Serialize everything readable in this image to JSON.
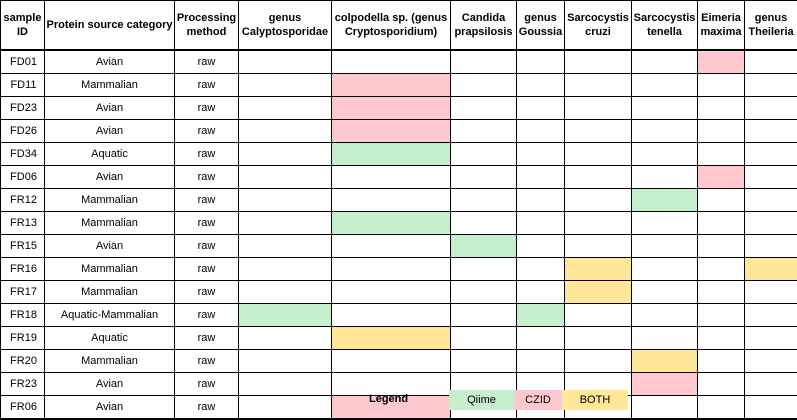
{
  "colors": {
    "qiime": "#c6efce",
    "czid": "#ffc7ce",
    "both": "#ffe699"
  },
  "headers": [
    "sample ID",
    "Protein source category",
    "Processing method",
    "genus Calyptosporidae",
    "colpodella sp. (genus Cryptosporidium)",
    "Candida prapsilosis",
    "genus Goussia",
    "Sarcocystis cruzi",
    "Sarcocystis tenella",
    "Eimeria maxima",
    "genus Theileria"
  ],
  "rows": [
    {
      "id": "FD01",
      "category": "Avian",
      "method": "raw",
      "marks": [
        null,
        null,
        null,
        null,
        null,
        null,
        "czid",
        null
      ]
    },
    {
      "id": "FD11",
      "category": "Mammalian",
      "method": "raw",
      "marks": [
        null,
        "czid",
        null,
        null,
        null,
        null,
        null,
        null
      ]
    },
    {
      "id": "FD23",
      "category": "Avian",
      "method": "raw",
      "marks": [
        null,
        "czid",
        null,
        null,
        null,
        null,
        null,
        null
      ]
    },
    {
      "id": "FD26",
      "category": "Avian",
      "method": "raw",
      "marks": [
        null,
        "czid",
        null,
        null,
        null,
        null,
        null,
        null
      ]
    },
    {
      "id": "FD34",
      "category": "Aquatic",
      "method": "raw",
      "marks": [
        null,
        "qiime",
        null,
        null,
        null,
        null,
        null,
        null
      ]
    },
    {
      "id": "FD06",
      "category": "Avian",
      "method": "raw",
      "marks": [
        null,
        null,
        null,
        null,
        null,
        null,
        "czid",
        null
      ]
    },
    {
      "id": "FR12",
      "category": "Mammalian",
      "method": "raw",
      "marks": [
        null,
        null,
        null,
        null,
        null,
        "qiime",
        null,
        null
      ]
    },
    {
      "id": "FR13",
      "category": "Mammalian",
      "method": "raw",
      "marks": [
        null,
        "qiime",
        null,
        null,
        null,
        null,
        null,
        null
      ]
    },
    {
      "id": "FR15",
      "category": "Avian",
      "method": "raw",
      "marks": [
        null,
        null,
        "qiime",
        null,
        null,
        null,
        null,
        null
      ]
    },
    {
      "id": "FR16",
      "category": "Mammalian",
      "method": "raw",
      "marks": [
        null,
        null,
        null,
        null,
        "both",
        null,
        null,
        "both"
      ]
    },
    {
      "id": "FR17",
      "category": "Mammalian",
      "method": "raw",
      "marks": [
        null,
        null,
        null,
        null,
        "both",
        null,
        null,
        null
      ]
    },
    {
      "id": "FR18",
      "category": "Aquatic-Mammalian",
      "method": "raw",
      "marks": [
        "qiime",
        null,
        null,
        "qiime",
        null,
        null,
        null,
        null
      ]
    },
    {
      "id": "FR19",
      "category": "Aquatic",
      "method": "raw",
      "marks": [
        null,
        "both",
        null,
        null,
        null,
        null,
        null,
        null
      ]
    },
    {
      "id": "FR20",
      "category": "Mammalian",
      "method": "raw",
      "marks": [
        null,
        null,
        null,
        null,
        null,
        "both",
        null,
        null
      ]
    },
    {
      "id": "FR23",
      "category": "Avian",
      "method": "raw",
      "marks": [
        null,
        null,
        null,
        null,
        null,
        "czid",
        null,
        null
      ]
    },
    {
      "id": "FR06",
      "category": "Avian",
      "method": "raw",
      "marks": [
        null,
        "czid",
        null,
        null,
        null,
        null,
        null,
        null
      ]
    }
  ],
  "legend": {
    "title": "Legend",
    "items": [
      {
        "key": "qiime",
        "label": "Qiime"
      },
      {
        "key": "czid",
        "label": "CZID"
      },
      {
        "key": "both",
        "label": "BOTH"
      }
    ]
  }
}
